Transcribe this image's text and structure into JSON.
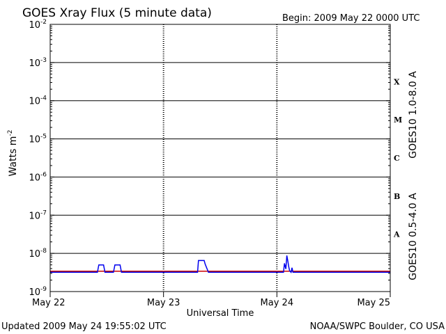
{
  "header": {
    "title": "GOES Xray Flux (5 minute data)",
    "begin": "Begin:  2009 May 22 0000 UTC"
  },
  "footer": {
    "updated": "Updated 2009 May 24 19:55:02 UTC",
    "credit": "NOAA/SWPC Boulder, CO USA"
  },
  "colors": {
    "long": "#cc0000",
    "short": "#0000ee",
    "axis": "#000000",
    "background": "#ffffff"
  },
  "chart_data": {
    "type": "line",
    "title": "GOES Xray Flux (5 minute data)",
    "xlabel": "Universal Time",
    "ylabel_base": "Watts m",
    "ylabel_exp": "-2",
    "yscale": "log",
    "ylim": [
      1e-09,
      0.01
    ],
    "y_ticks": [
      {
        "value": 0.01,
        "exp": "-2"
      },
      {
        "value": 0.001,
        "exp": "-3"
      },
      {
        "value": 0.0001,
        "exp": "-4"
      },
      {
        "value": 1e-05,
        "exp": "-5"
      },
      {
        "value": 1e-06,
        "exp": "-6"
      },
      {
        "value": 1e-07,
        "exp": "-7"
      },
      {
        "value": 1e-08,
        "exp": "-8"
      },
      {
        "value": 1e-09,
        "exp": "-9"
      }
    ],
    "tick_base": "10",
    "xlim_hours": [
      0,
      72
    ],
    "x_ticks": [
      {
        "hour": 0,
        "label": "May 22"
      },
      {
        "hour": 24,
        "label": "May 23"
      },
      {
        "hour": 48,
        "label": "May 24"
      },
      {
        "hour": 72,
        "label": "May 25"
      }
    ],
    "flare_classes": [
      {
        "label": "X",
        "low": 0.0001,
        "high": 0.001
      },
      {
        "label": "M",
        "low": 1e-05,
        "high": 0.0001
      },
      {
        "label": "C",
        "low": 1e-06,
        "high": 1e-05
      },
      {
        "label": "B",
        "low": 1e-07,
        "high": 1e-06
      },
      {
        "label": "A",
        "low": 1e-08,
        "high": 1e-07
      }
    ],
    "grid": "horizontal at each decade, dashed vertical at day boundaries",
    "series": [
      {
        "name": "GOES10 1.0-8.0 A",
        "color": "#cc0000",
        "points": [
          [
            0,
            3.4e-09
          ],
          [
            72,
            3.4e-09
          ]
        ]
      },
      {
        "name": "GOES10 0.5-4.0 A",
        "color": "#0000ee",
        "points": [
          [
            0,
            3.2e-09
          ],
          [
            10.0,
            3.2e-09
          ],
          [
            10.3,
            5e-09
          ],
          [
            11.3,
            5e-09
          ],
          [
            11.6,
            3.2e-09
          ],
          [
            13.4,
            3.2e-09
          ],
          [
            13.7,
            5e-09
          ],
          [
            14.8,
            5e-09
          ],
          [
            15.1,
            3.2e-09
          ],
          [
            31.2,
            3.2e-09
          ],
          [
            31.4,
            6.5e-09
          ],
          [
            32.6,
            6.5e-09
          ],
          [
            32.8,
            5.3e-09
          ],
          [
            33.5,
            3.2e-09
          ],
          [
            49.4,
            3.2e-09
          ],
          [
            49.6,
            5.5e-09
          ],
          [
            49.9,
            3.9e-09
          ],
          [
            50.1,
            8.8e-09
          ],
          [
            50.3,
            6.5e-09
          ],
          [
            50.5,
            4.5e-09
          ],
          [
            50.7,
            3.5e-09
          ],
          [
            51.0,
            3.2e-09
          ],
          [
            51.2,
            4.2e-09
          ],
          [
            51.4,
            3.2e-09
          ],
          [
            72,
            3.2e-09
          ]
        ]
      }
    ]
  }
}
